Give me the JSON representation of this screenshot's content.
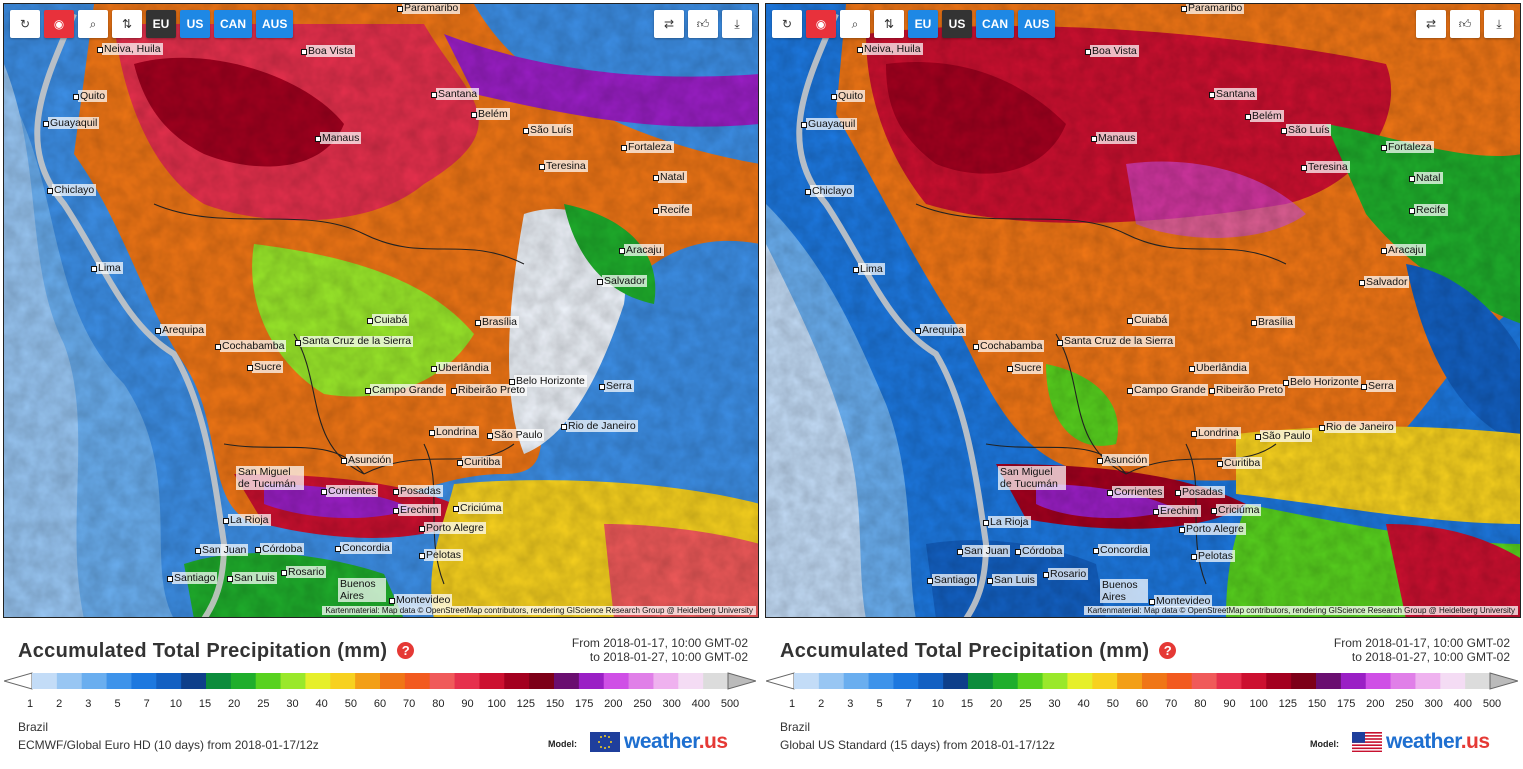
{
  "colors": {
    "scale": [
      "#c3dcf7",
      "#98c6f3",
      "#6aaeef",
      "#3e93ea",
      "#1d78df",
      "#1360c2",
      "#0e3f8a",
      "#0c8c3c",
      "#1fae2c",
      "#58d21f",
      "#9ae82b",
      "#e6ef2a",
      "#f7d11f",
      "#f39f16",
      "#f07616",
      "#f25a1f",
      "#f05a5a",
      "#e6304d",
      "#cc1030",
      "#a3001f",
      "#7d0018",
      "#6a0e70",
      "#9a1fc5",
      "#cf4fe6",
      "#e07fe8",
      "#efb2ef",
      "#f4dcf4",
      "#dcdcdc"
    ]
  },
  "scale_labels": [
    "1",
    "2",
    "3",
    "5",
    "7",
    "10",
    "15",
    "20",
    "25",
    "30",
    "40",
    "50",
    "60",
    "70",
    "80",
    "90",
    "100",
    "125",
    "150",
    "175",
    "200",
    "250",
    "300",
    "400",
    "500"
  ],
  "attribution": "Kartenmaterial: Map data © OpenStreetMap contributors, rendering GIScience Research Group @ Heidelberg University",
  "toolbar": {
    "regions": [
      "EU",
      "US",
      "CAN",
      "AUS"
    ]
  },
  "legend": {
    "title": "Accumulated Total Precipitation (mm)",
    "help": "?",
    "from": "From 2018-01-17, 10:00 GMT-02",
    "to": "to 2018-01-27, 10:00 GMT-02"
  },
  "cities": {
    "paramaribo": "Paramaribo",
    "neiva": "Neiva, Huila",
    "boavista": "Boa Vista",
    "quito": "Quito",
    "guayaquil": "Guayaquil",
    "santana": "Santana",
    "belem": "Belém",
    "manaus": "Manaus",
    "saoluis": "São Luís",
    "fortaleza": "Fortaleza",
    "teresina": "Teresina",
    "natal": "Natal",
    "chiclayo": "Chiclayo",
    "recife": "Recife",
    "aracaju": "Aracaju",
    "lima": "Lima",
    "salvador": "Salvador",
    "arequipa": "Arequipa",
    "cuiaba": "Cuiabá",
    "brasilia": "Brasília",
    "cochabamba": "Cochabamba",
    "santacruz": "Santa Cruz de la Sierra",
    "sucre": "Sucre",
    "uberlandia": "Uberlândia",
    "campogrande": "Campo Grande",
    "ribeirao": "Ribeirão Preto",
    "belohorizonte": "Belo Horizonte",
    "serra": "Serra",
    "londrina": "Londrina",
    "saopaulo": "São Paulo",
    "riodejaneiro": "Rio de Janeiro",
    "asuncion": "Asunción",
    "curitiba": "Curitiba",
    "sanmiguel": "San Miguel de Tucumán",
    "corrientes": "Corrientes",
    "posadas": "Posadas",
    "erechim": "Erechim",
    "criciuma": "Criciúma",
    "larioja": "La Rioja",
    "portoalegre": "Porto Alegre",
    "sanjuan": "San Juan",
    "cordoba": "Córdoba",
    "concordia": "Concordia",
    "pelotas": "Pelotas",
    "santiago": "Santiago",
    "sanluis": "San Luis",
    "rosario": "Rosario",
    "buenosaires": "Buenos Aires",
    "montevideo": "Montevideo"
  },
  "panels": [
    {
      "region": "Brazil",
      "active_region": "EU",
      "model": "ECMWF/Global Euro HD (10 days) from 2018-01-17/12z",
      "model_label": "Model:",
      "brand": "weather",
      "brand_tld": ".us"
    },
    {
      "region": "Brazil",
      "active_region": "US",
      "model": "Global US Standard (15 days) from 2018-01-17/12z",
      "model_label": "Model:",
      "brand": "weather",
      "brand_tld": ".us"
    }
  ]
}
